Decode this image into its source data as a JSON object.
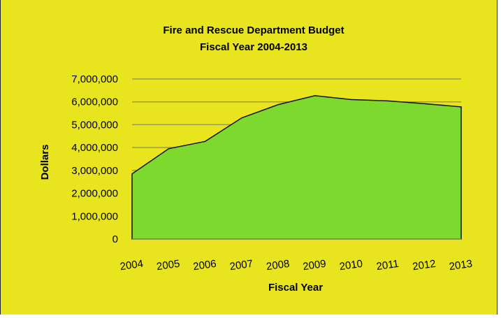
{
  "colors": {
    "background": "#e8e51e",
    "area_fill": "#7ed92e",
    "area_stroke": "#111111",
    "gridline": "#9a9a50",
    "text": "#000000"
  },
  "chart_data": {
    "type": "area",
    "title": "Fire and Rescue Department Budget",
    "subtitle": "Fiscal Year 2004-2013",
    "xlabel": "Fiscal Year",
    "ylabel": "Dollars",
    "categories": [
      "2004",
      "2005",
      "2006",
      "2007",
      "2008",
      "2009",
      "2010",
      "2011",
      "2012",
      "2013"
    ],
    "series": [
      {
        "values": [
          2850000,
          3950000,
          4270000,
          5300000,
          5880000,
          6270000,
          6100000,
          6040000,
          5920000,
          5780000
        ]
      }
    ],
    "ylim": [
      0,
      7000000
    ],
    "y_ticks": [
      0,
      1000000,
      2000000,
      3000000,
      4000000,
      5000000,
      6000000,
      7000000
    ],
    "y_tick_labels": [
      "0",
      "1,000,000",
      "2,000,000",
      "3,000,000",
      "4,000,000",
      "5,000,000",
      "6,000,000",
      "7,000,000"
    ],
    "grid": true,
    "legend": "none"
  }
}
